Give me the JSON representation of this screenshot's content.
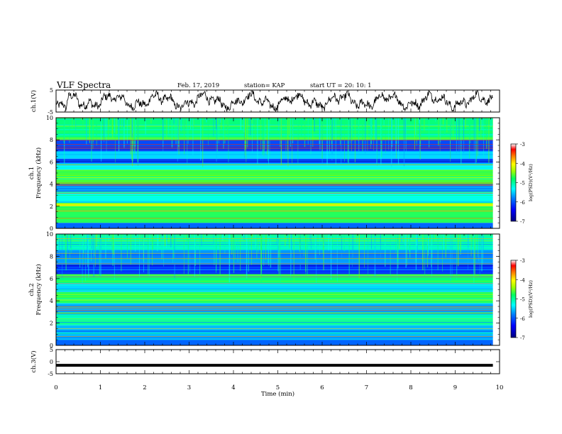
{
  "header": {
    "title": "VLF Spectra",
    "date": "Feb. 17, 2019",
    "station": "station= KAP",
    "start_ut": "start UT =  20: 10: 1"
  },
  "chart_data": [
    {
      "type": "line",
      "panel": "ch1-waveform",
      "ylabel": "ch.1(V)",
      "ylim": [
        -5,
        5
      ],
      "y_ticks": [
        "5",
        "-5"
      ],
      "x_range_min": [
        0,
        9.85
      ],
      "series": [
        {
          "color": "#000000",
          "trend": "noisy fluctuation mostly between -4 and +4 V"
        }
      ]
    },
    {
      "type": "heatmap",
      "panel": "ch1-spectrogram",
      "ylabel": "ch.1",
      "ylabel2": "Frequency (kHz)",
      "ylim": [
        0,
        10
      ],
      "y_ticks": [
        "0",
        "2",
        "4",
        "6",
        "8",
        "10"
      ],
      "colorbar": {
        "label": "log(PSD)(V²/Hz)",
        "range": [
          -7,
          -3
        ],
        "ticks": [
          "-3",
          "-4",
          "-5",
          "-6",
          "-7"
        ]
      },
      "bands_khz": [
        {
          "from": 0.0,
          "to": 0.5,
          "level": -6.2
        },
        {
          "from": 0.5,
          "to": 2.0,
          "level": -5.1
        },
        {
          "from": 2.0,
          "to": 2.3,
          "level": -4.6
        },
        {
          "from": 2.3,
          "to": 3.3,
          "level": -5.6
        },
        {
          "from": 3.3,
          "to": 4.0,
          "level": -6.1
        },
        {
          "from": 4.0,
          "to": 5.3,
          "level": -5.0
        },
        {
          "from": 5.3,
          "to": 5.9,
          "level": -5.7
        },
        {
          "from": 5.9,
          "to": 6.3,
          "level": -6.3
        },
        {
          "from": 6.3,
          "to": 7.0,
          "level": -5.8
        },
        {
          "from": 7.0,
          "to": 8.0,
          "level": -6.3
        },
        {
          "from": 8.0,
          "to": 10.0,
          "level": -5.2
        }
      ]
    },
    {
      "type": "heatmap",
      "panel": "ch2-spectrogram",
      "ylabel": "ch.2",
      "ylabel2": "Frequency (kHz)",
      "ylim": [
        0,
        10
      ],
      "y_ticks": [
        "0",
        "2",
        "4",
        "6",
        "8",
        "10"
      ],
      "colorbar": {
        "label": "log(PSD)(V²/Hz)",
        "range": [
          -7,
          -3
        ],
        "ticks": [
          "-3",
          "-4",
          "-5",
          "-6",
          "-7"
        ]
      },
      "bands_khz": [
        {
          "from": 0.0,
          "to": 0.5,
          "level": -6.2
        },
        {
          "from": 0.5,
          "to": 1.8,
          "level": -5.9
        },
        {
          "from": 1.8,
          "to": 3.0,
          "level": -5.4
        },
        {
          "from": 3.0,
          "to": 3.8,
          "level": -5.9
        },
        {
          "from": 3.8,
          "to": 4.8,
          "level": -5.1
        },
        {
          "from": 4.8,
          "to": 5.6,
          "level": -5.8
        },
        {
          "from": 5.6,
          "to": 6.4,
          "level": -5.2
        },
        {
          "from": 6.4,
          "to": 7.4,
          "level": -6.4
        },
        {
          "from": 7.4,
          "to": 8.6,
          "level": -6.0
        },
        {
          "from": 8.6,
          "to": 10.0,
          "level": -5.4
        }
      ]
    },
    {
      "type": "line",
      "panel": "ch3-waveform",
      "ylabel": "ch.3(V)",
      "ylim": [
        -5,
        5
      ],
      "y_ticks": [
        "5",
        "0",
        "-5"
      ],
      "series": [
        {
          "color": "#000000",
          "constant_value": -1.5
        }
      ]
    }
  ],
  "x_axis": {
    "label": "Time (min)",
    "range": [
      0,
      10
    ],
    "ticks": [
      "0",
      "1",
      "2",
      "3",
      "4",
      "5",
      "6",
      "7",
      "8",
      "9",
      "10"
    ]
  },
  "colors": {
    "cmap": [
      "#000080",
      "#0000ff",
      "#0080ff",
      "#00ffff",
      "#00ff80",
      "#80ff00",
      "#ffff00",
      "#ff8000",
      "#ff0000",
      "#ffffff"
    ]
  }
}
